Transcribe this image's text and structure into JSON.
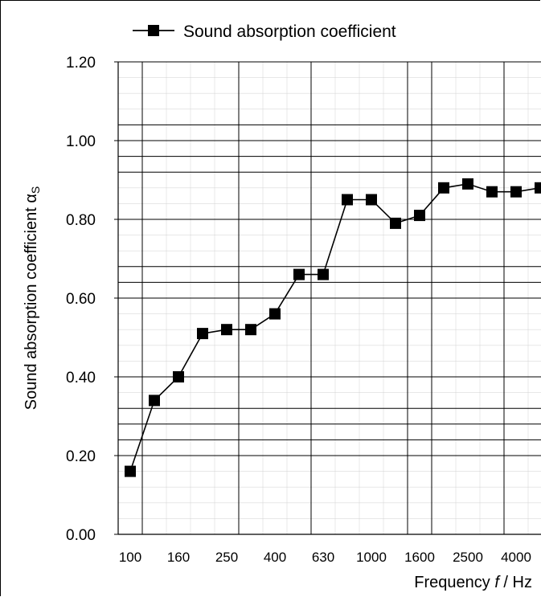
{
  "chart_data": {
    "type": "line",
    "legend": {
      "label": "Sound absorption coefficient",
      "placement": "top"
    },
    "xlabel_prefix": "Frequency ",
    "xlabel_var": "f",
    "xlabel_suffix": " / Hz",
    "ylabel_main": "Sound absorption coefficient α",
    "ylabel_sub": "S",
    "ylim": [
      0.0,
      1.2
    ],
    "y_ticks": [
      "0.00",
      "0.20",
      "0.40",
      "0.60",
      "0.80",
      "1.00",
      "1.20"
    ],
    "x_tick_labels": [
      "100",
      "160",
      "250",
      "400",
      "630",
      "1000",
      "1600",
      "2500",
      "4000"
    ],
    "x": [
      "100",
      "125",
      "160",
      "200",
      "250",
      "315",
      "400",
      "500",
      "630",
      "800",
      "1000",
      "1250",
      "1600",
      "2000",
      "2500",
      "3150",
      "4000",
      "5000"
    ],
    "series": [
      {
        "name": "Sound absorption coefficient",
        "values": [
          0.16,
          0.34,
          0.4,
          0.51,
          0.52,
          0.52,
          0.56,
          0.66,
          0.66,
          0.85,
          0.85,
          0.79,
          0.81,
          0.88,
          0.89,
          0.87,
          0.87,
          0.88
        ]
      }
    ],
    "grid": true,
    "colors": {
      "line": "#000000",
      "marker": "#000000",
      "grid": "#000000",
      "frame": "#000000"
    }
  }
}
